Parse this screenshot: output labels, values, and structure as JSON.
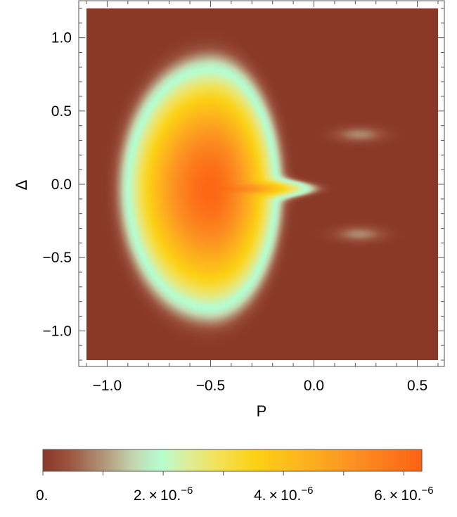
{
  "chart_data": {
    "type": "heatmap",
    "title": "",
    "xlabel": "P",
    "ylabel": "Δ",
    "xlim": [
      -1.1,
      0.6
    ],
    "ylim": [
      -1.2,
      1.2
    ],
    "x_ticks": [
      {
        "value": -1.0,
        "label": "−1.0"
      },
      {
        "value": -0.5,
        "label": "−0.5"
      },
      {
        "value": 0.0,
        "label": "0.0"
      },
      {
        "value": 0.5,
        "label": "0.5"
      }
    ],
    "y_ticks": [
      {
        "value": 1.0,
        "label": "1.0"
      },
      {
        "value": 0.5,
        "label": "0.5"
      },
      {
        "value": 0.0,
        "label": "0.0"
      },
      {
        "value": -0.5,
        "label": "−0.5"
      },
      {
        "value": -1.0,
        "label": "−1.0"
      }
    ],
    "field": {
      "peak_value": 6.2e-06,
      "peak_location": {
        "P": -0.5,
        "Delta": -0.03
      },
      "threshold_contour": {
        "value": 2e-06,
        "description": "pale mint boundary curve, cusp near P=0.0, Δ=0"
      },
      "side_lobes": [
        {
          "P": 0.22,
          "Delta": 0.34,
          "value": 9e-07
        },
        {
          "P": 0.22,
          "Delta": -0.34,
          "value": 9e-07
        }
      ]
    },
    "colorbar": {
      "range": [
        0,
        6.3e-06
      ],
      "ticks": [
        {
          "value": 0,
          "label": "0.",
          "exponent": ""
        },
        {
          "value": 2e-06,
          "label": "2. × 10.",
          "exponent": "−6"
        },
        {
          "value": 4e-06,
          "label": "4. × 10.",
          "exponent": "−6"
        },
        {
          "value": 6e-06,
          "label": "6. × 10.",
          "exponent": "−6"
        }
      ],
      "minor_step": 1e-06,
      "colors": [
        {
          "pos": 0.0,
          "color": "#8a3828"
        },
        {
          "pos": 0.07,
          "color": "#9b5440"
        },
        {
          "pos": 0.15,
          "color": "#b08e72"
        },
        {
          "pos": 0.24,
          "color": "#c4d6ae"
        },
        {
          "pos": 0.31,
          "color": "#b5fdd0"
        },
        {
          "pos": 0.38,
          "color": "#dcee9a"
        },
        {
          "pos": 0.47,
          "color": "#f4e050"
        },
        {
          "pos": 0.56,
          "color": "#fcd115"
        },
        {
          "pos": 0.68,
          "color": "#fdb51d"
        },
        {
          "pos": 0.82,
          "color": "#fc9122"
        },
        {
          "pos": 1.0,
          "color": "#fc6214"
        }
      ]
    }
  }
}
